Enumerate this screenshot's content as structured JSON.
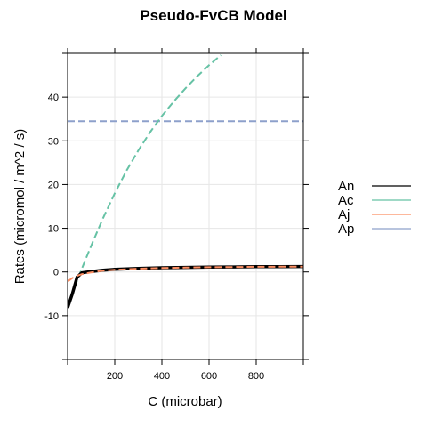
{
  "chart_data": {
    "type": "line",
    "title": "Pseudo-FvCB Model",
    "xlabel": "C (microbar)",
    "ylabel": "Rates (micromol / m^2 / s)",
    "xlim": [
      0,
      1000
    ],
    "ylim": [
      -20,
      50
    ],
    "x_ticks": [
      200,
      400,
      600,
      800
    ],
    "y_ticks": [
      -10,
      0,
      10,
      20,
      30,
      40
    ],
    "grid": true,
    "legend_position": "right",
    "series": [
      {
        "name": "An",
        "color": "#000000",
        "dash": "solid",
        "x": [
          0,
          20,
          40,
          60,
          100,
          150,
          200,
          300,
          400,
          500,
          600,
          700,
          800,
          900,
          1000
        ],
        "y": [
          -8.2,
          -5,
          -1.2,
          -0.2,
          0.1,
          0.4,
          0.6,
          0.8,
          0.95,
          1.05,
          1.1,
          1.15,
          1.2,
          1.22,
          1.25
        ]
      },
      {
        "name": "Ac",
        "color": "#66c2a5",
        "dash": "dashed",
        "x": [
          0,
          25,
          50,
          100,
          150,
          200,
          250,
          300,
          350,
          400,
          450,
          500,
          550,
          600,
          650
        ],
        "y": [
          -8.2,
          -4.2,
          -0.6,
          6,
          12.3,
          18,
          23.2,
          27.8,
          32,
          35.7,
          39,
          42,
          44.8,
          47.3,
          49.6
        ]
      },
      {
        "name": "Aj",
        "color": "#fc8d62",
        "dash": "dashed",
        "x": [
          0,
          20,
          40,
          60,
          100,
          150,
          200,
          300,
          400,
          500,
          600,
          700,
          800,
          900,
          1000
        ],
        "y": [
          -2.2,
          -1.4,
          -0.9,
          -0.5,
          -0.1,
          0.3,
          0.5,
          0.75,
          0.9,
          1.0,
          1.08,
          1.13,
          1.18,
          1.2,
          1.23
        ]
      },
      {
        "name": "Ap",
        "color": "#8da0cb",
        "dash": "dashed",
        "x": [
          0,
          1000
        ],
        "y": [
          34.5,
          34.5
        ]
      }
    ]
  }
}
